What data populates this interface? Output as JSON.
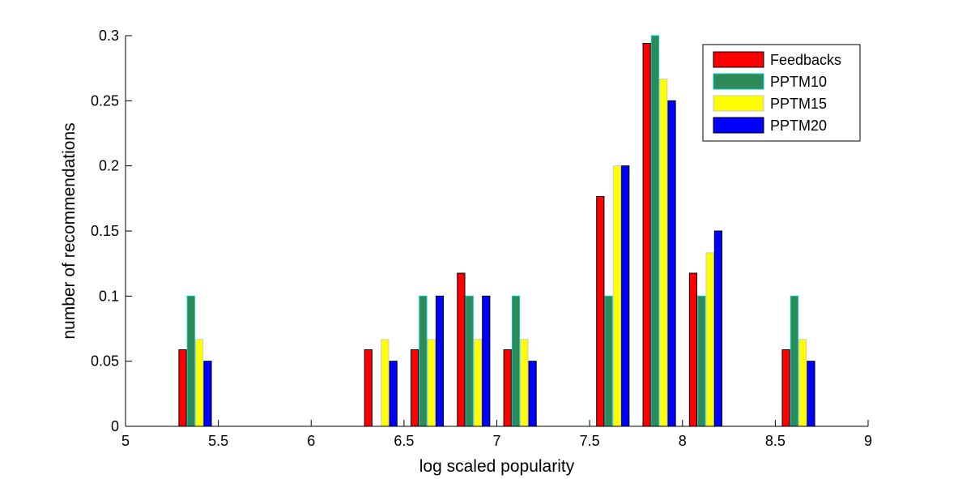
{
  "chart_data": {
    "type": "bar",
    "xlabel": "log scaled popularity",
    "ylabel": "number of recommendations",
    "xlim": [
      5,
      9
    ],
    "ylim": [
      0,
      0.3
    ],
    "xticks": [
      "5",
      "5.5",
      "6",
      "6.5",
      "7",
      "7.5",
      "8",
      "8.5",
      "9"
    ],
    "yticks": [
      "0",
      "0.05",
      "0.1",
      "0.15",
      "0.2",
      "0.25",
      "0.3"
    ],
    "grid": false,
    "legend_position": "top-right",
    "x": [
      5.125,
      5.375,
      5.625,
      5.875,
      6.125,
      6.375,
      6.625,
      6.875,
      7.125,
      7.375,
      7.625,
      7.875,
      8.125,
      8.375,
      8.625,
      8.875
    ],
    "series": [
      {
        "name": "Feedbacks",
        "color": "#ff0000",
        "edge": "#000000",
        "values": [
          0,
          0.0588,
          0,
          0,
          0,
          0.0588,
          0.0588,
          0.1176,
          0.0588,
          0,
          0.1765,
          0.2941,
          0.1176,
          0,
          0.0588,
          0
        ]
      },
      {
        "name": "PPTM10",
        "color": "#2e8b57",
        "edge": "#00c8c8",
        "values": [
          0,
          0.1,
          0,
          0,
          0,
          0,
          0.1,
          0.1,
          0.1,
          0,
          0.1,
          0.3,
          0.1,
          0,
          0.1,
          0
        ]
      },
      {
        "name": "PPTM15",
        "color": "#ffff00",
        "edge": "#c8c8c8",
        "values": [
          0,
          0.0667,
          0,
          0,
          0,
          0.0667,
          0.0667,
          0.0667,
          0.0667,
          0,
          0.2,
          0.2667,
          0.1333,
          0,
          0.0667,
          0
        ]
      },
      {
        "name": "PPTM20",
        "color": "#0000ff",
        "edge": "#000000",
        "values": [
          0,
          0.05,
          0,
          0,
          0,
          0.05,
          0.1,
          0.1,
          0.05,
          0,
          0.2,
          0.25,
          0.15,
          0,
          0.05,
          0
        ]
      }
    ]
  }
}
